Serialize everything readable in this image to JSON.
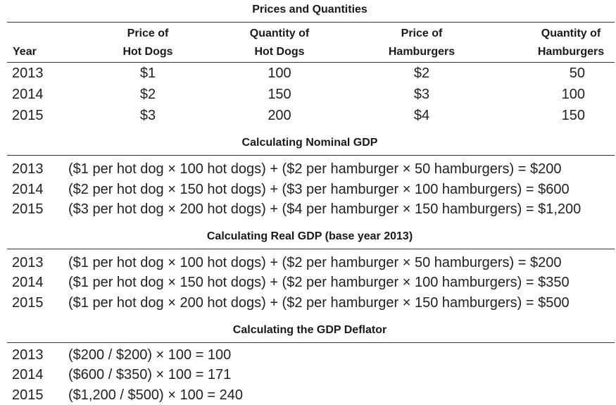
{
  "prices_table": {
    "title": "Prices and Quantities",
    "headers": {
      "year": "Year",
      "price_hot_dogs_line1": "Price of",
      "price_hot_dogs_line2": "Hot Dogs",
      "qty_hot_dogs_line1": "Quantity of",
      "qty_hot_dogs_line2": "Hot Dogs",
      "price_hamburgers_line1": "Price of",
      "price_hamburgers_line2": "Hamburgers",
      "qty_hamburgers_line1": "Quantity of",
      "qty_hamburgers_line2": "Hamburgers"
    },
    "rows": [
      {
        "year": "2013",
        "price_hot_dogs": "$1",
        "qty_hot_dogs": "100",
        "price_hamburgers": "$2",
        "qty_hamburgers": "50"
      },
      {
        "year": "2014",
        "price_hot_dogs": "$2",
        "qty_hot_dogs": "150",
        "price_hamburgers": "$3",
        "qty_hamburgers": "100"
      },
      {
        "year": "2015",
        "price_hot_dogs": "$3",
        "qty_hot_dogs": "200",
        "price_hamburgers": "$4",
        "qty_hamburgers": "150"
      }
    ]
  },
  "nominal_gdp": {
    "title": "Calculating Nominal GDP",
    "rows": [
      {
        "year": "2013",
        "formula": "($1 per hot dog × 100 hot dogs) + ($2 per hamburger × 50 hamburgers) = $200"
      },
      {
        "year": "2014",
        "formula": "($2 per hot dog × 150 hot dogs) + ($3 per hamburger × 100 hamburgers) = $600"
      },
      {
        "year": "2015",
        "formula": "($3 per hot dog × 200 hot dogs) + ($4 per hamburger × 150 hamburgers) = $1,200"
      }
    ]
  },
  "real_gdp": {
    "title": "Calculating Real GDP (base year 2013)",
    "rows": [
      {
        "year": "2013",
        "formula": "($1 per hot dog × 100 hot dogs) + ($2 per hamburger × 50 hamburgers) = $200"
      },
      {
        "year": "2014",
        "formula": "($1 per hot dog × 150 hot dogs) + ($2 per hamburger × 100 hamburgers) = $350"
      },
      {
        "year": "2015",
        "formula": "($1 per hot dog × 200 hot dogs) + ($2 per hamburger × 150 hamburgers) = $500"
      }
    ]
  },
  "gdp_deflator": {
    "title": "Calculating the GDP Deflator",
    "rows": [
      {
        "year": "2013",
        "formula": "($200 / $200) × 100 = 100"
      },
      {
        "year": "2014",
        "formula": "($600 / $350) × 100 = 171"
      },
      {
        "year": "2015",
        "formula": "($1,200 / $500) × 100 = 240"
      }
    ]
  }
}
